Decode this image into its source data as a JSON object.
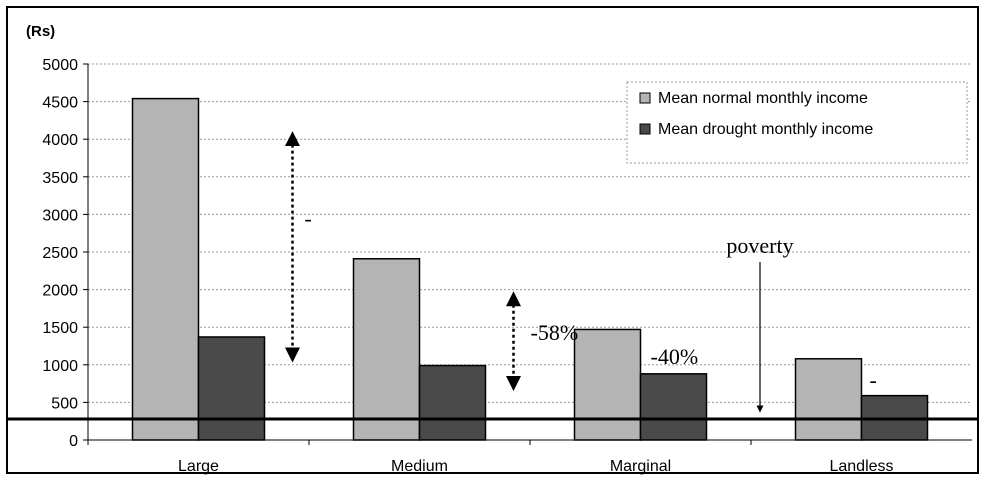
{
  "chart_data": {
    "type": "bar",
    "unit_label": "(Rs)",
    "categories": [
      "Large",
      "Medium",
      "Marginal",
      "Landless"
    ],
    "series": [
      {
        "name": "Mean normal monthly income",
        "values": [
          4540,
          2410,
          1470,
          1080
        ],
        "color": "#b4b4b4"
      },
      {
        "name": "Mean drought monthly income",
        "values": [
          1370,
          990,
          880,
          590
        ],
        "color": "#4a4a4a"
      }
    ],
    "ylim": [
      0,
      5000
    ],
    "yticks": [
      0,
      500,
      1000,
      1500,
      2000,
      2500,
      3000,
      3500,
      4000,
      4500,
      5000
    ],
    "grid": true,
    "legend_position": "top-right",
    "poverty_line_value": 280,
    "annotations": [
      {
        "category": "Large",
        "text": "-"
      },
      {
        "category": "Medium",
        "text": "-58%"
      },
      {
        "category": "Marginal",
        "text": "-40%"
      },
      {
        "category": "Landless",
        "text": "-"
      }
    ],
    "poverty_label": "poverty"
  }
}
